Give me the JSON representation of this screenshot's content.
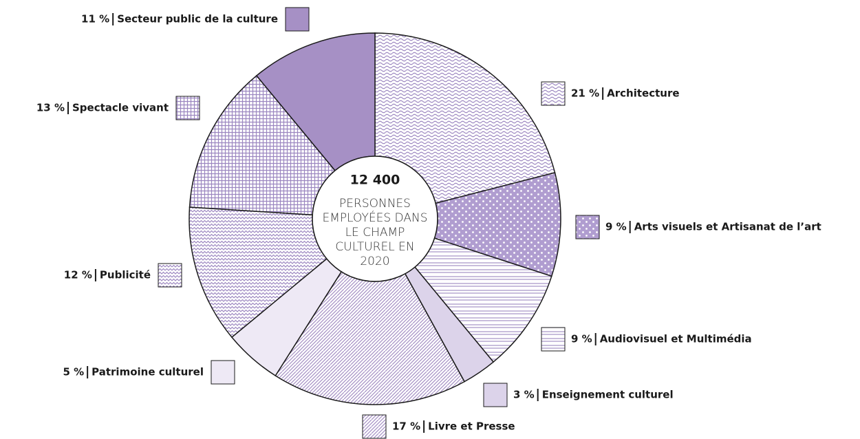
{
  "chart_data": {
    "type": "donut",
    "categories": [
      "Architecture",
      "Arts visuels et Artisanat de l’art",
      "Audiovisuel et Multimédia",
      "Enseignement culturel",
      "Livre et Presse",
      "Patrimoine culturel",
      "Publicité",
      "Spectacle vivant",
      "Secteur public de la culture"
    ],
    "values": [
      21,
      9,
      9,
      3,
      17,
      5,
      12,
      13,
      11
    ],
    "value_labels": [
      "21 %",
      "9 %",
      "9 %",
      "3 %",
      "17 %",
      "5 %",
      "12 %",
      "13 %",
      "11 %"
    ],
    "colors": [
      "#9b86c0",
      "#b09dd0",
      "#a896c8",
      "#dcd3ea",
      "#a58fc4",
      "#eee9f5",
      "#9b86c0",
      "#9b86c0",
      "#a690c5"
    ],
    "patterns": [
      "waves",
      "dots",
      "hlines",
      "none",
      "diagonal",
      "none",
      "zigzag",
      "grid",
      "none"
    ],
    "center_label": "12 400",
    "center_text": [
      "PERSONNES",
      "EMPLOYÉES DANS",
      "LE CHAMP",
      "CULTUREL EN",
      "2020"
    ]
  }
}
